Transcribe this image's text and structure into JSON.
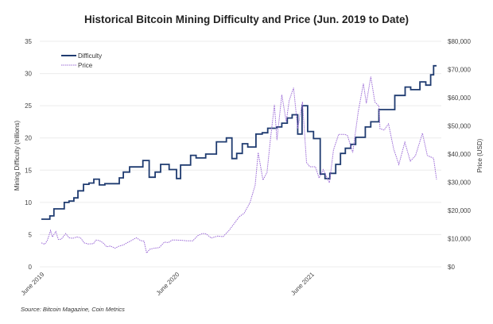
{
  "chart_data": {
    "type": "line",
    "title": "Historical Bitcoin Mining Difficulty and Price (Jun. 2019 to Date)",
    "source": "Source: Bitcoin Magazine, Coin Metrics",
    "x_range": [
      "2019-06-01",
      "2022-05-06"
    ],
    "x_tick_labels": [
      [
        "2019-06-01",
        "June 2019"
      ],
      [
        "2020-06-01",
        "June 2020"
      ],
      [
        "2021-06-01",
        "June 2021"
      ]
    ],
    "y_left": {
      "label": "Mining Difficulty (trillions)",
      "range": [
        0,
        35
      ],
      "ticks": [
        "0",
        "5",
        "10",
        "15",
        "20",
        "25",
        "30",
        "35"
      ]
    },
    "y_right": {
      "label": "Price (USD)",
      "range": [
        0,
        80000
      ],
      "ticks": [
        "$0",
        "$10,000",
        "$20,000",
        "$30,000",
        "$40,000",
        "$50,000",
        "$60,000",
        "$70,000",
        "$80,000"
      ]
    },
    "grid": true,
    "legend": {
      "placement": "top-left",
      "entries": [
        "Difficulty",
        "Price"
      ]
    },
    "colors": {
      "difficulty": "#1f3b70",
      "price": "#9b6ad6",
      "grid": "#ececec"
    },
    "series": [
      {
        "name": "Difficulty",
        "axis": "left",
        "style": "step-solid",
        "points": [
          [
            "2019-06-01",
            7.4
          ],
          [
            "2019-06-24",
            7.9
          ],
          [
            "2019-07-05",
            9.0
          ],
          [
            "2019-08-02",
            10.0
          ],
          [
            "2019-08-15",
            10.2
          ],
          [
            "2019-08-28",
            10.7
          ],
          [
            "2019-09-08",
            11.8
          ],
          [
            "2019-09-23",
            12.8
          ],
          [
            "2019-10-08",
            13.0
          ],
          [
            "2019-10-21",
            13.6
          ],
          [
            "2019-11-05",
            12.7
          ],
          [
            "2019-11-20",
            12.9
          ],
          [
            "2019-12-29",
            13.8
          ],
          [
            "2020-01-09",
            14.7
          ],
          [
            "2020-01-26",
            15.5
          ],
          [
            "2020-03-02",
            16.5
          ],
          [
            "2020-03-19",
            13.9
          ],
          [
            "2020-04-04",
            14.7
          ],
          [
            "2020-04-19",
            15.9
          ],
          [
            "2020-05-12",
            15.1
          ],
          [
            "2020-06-01",
            13.7
          ],
          [
            "2020-06-12",
            15.8
          ],
          [
            "2020-07-09",
            17.3
          ],
          [
            "2020-07-24",
            16.9
          ],
          [
            "2020-08-19",
            17.5
          ],
          [
            "2020-09-17",
            19.4
          ],
          [
            "2020-10-14",
            20.0
          ],
          [
            "2020-10-29",
            16.8
          ],
          [
            "2020-11-11",
            17.6
          ],
          [
            "2020-11-26",
            19.1
          ],
          [
            "2020-12-11",
            18.6
          ],
          [
            "2021-01-02",
            20.6
          ],
          [
            "2021-01-19",
            20.8
          ],
          [
            "2021-02-03",
            21.5
          ],
          [
            "2021-02-27",
            21.7
          ],
          [
            "2021-03-13",
            22.3
          ],
          [
            "2021-03-28",
            23.1
          ],
          [
            "2021-04-10",
            23.6
          ],
          [
            "2021-04-25",
            20.6
          ],
          [
            "2021-05-07",
            25.0
          ],
          [
            "2021-05-22",
            21.0
          ],
          [
            "2021-06-07",
            19.9
          ],
          [
            "2021-06-25",
            14.4
          ],
          [
            "2021-07-08",
            13.7
          ],
          [
            "2021-07-21",
            14.5
          ],
          [
            "2021-08-06",
            15.9
          ],
          [
            "2021-08-19",
            17.6
          ],
          [
            "2021-09-01",
            18.4
          ],
          [
            "2021-09-16",
            19.0
          ],
          [
            "2021-09-29",
            20.1
          ],
          [
            "2021-10-25",
            21.7
          ],
          [
            "2021-11-09",
            22.5
          ],
          [
            "2021-12-01",
            24.4
          ],
          [
            "2022-01-13",
            26.6
          ],
          [
            "2022-02-10",
            27.9
          ],
          [
            "2022-02-25",
            27.5
          ],
          [
            "2022-03-22",
            28.7
          ],
          [
            "2022-04-07",
            28.2
          ],
          [
            "2022-04-20",
            29.8
          ],
          [
            "2022-04-28",
            31.2
          ],
          [
            "2022-05-06",
            31.2
          ]
        ]
      },
      {
        "name": "Price",
        "axis": "right",
        "style": "dotted",
        "points": [
          [
            "2019-06-01",
            8500
          ],
          [
            "2019-06-10",
            8000
          ],
          [
            "2019-06-17",
            9300
          ],
          [
            "2019-06-26",
            12900
          ],
          [
            "2019-07-01",
            10600
          ],
          [
            "2019-07-10",
            12500
          ],
          [
            "2019-07-17",
            9700
          ],
          [
            "2019-07-25",
            9800
          ],
          [
            "2019-08-06",
            11800
          ],
          [
            "2019-08-15",
            10300
          ],
          [
            "2019-08-25",
            10100
          ],
          [
            "2019-09-05",
            10600
          ],
          [
            "2019-09-15",
            10300
          ],
          [
            "2019-09-25",
            8500
          ],
          [
            "2019-10-05",
            8100
          ],
          [
            "2019-10-20",
            8200
          ],
          [
            "2019-10-27",
            9500
          ],
          [
            "2019-11-05",
            9300
          ],
          [
            "2019-11-15",
            8500
          ],
          [
            "2019-11-25",
            7100
          ],
          [
            "2019-12-05",
            7400
          ],
          [
            "2019-12-17",
            6600
          ],
          [
            "2019-12-28",
            7300
          ],
          [
            "2020-01-10",
            7800
          ],
          [
            "2020-01-20",
            8600
          ],
          [
            "2020-02-01",
            9400
          ],
          [
            "2020-02-13",
            10300
          ],
          [
            "2020-02-25",
            9300
          ],
          [
            "2020-03-05",
            9100
          ],
          [
            "2020-03-12",
            4900
          ],
          [
            "2020-03-20",
            6200
          ],
          [
            "2020-04-01",
            6600
          ],
          [
            "2020-04-15",
            6800
          ],
          [
            "2020-04-29",
            8800
          ],
          [
            "2020-05-10",
            8600
          ],
          [
            "2020-05-20",
            9500
          ],
          [
            "2020-06-01",
            9500
          ],
          [
            "2020-06-15",
            9400
          ],
          [
            "2020-07-01",
            9200
          ],
          [
            "2020-07-15",
            9200
          ],
          [
            "2020-07-28",
            11000
          ],
          [
            "2020-08-10",
            11800
          ],
          [
            "2020-08-20",
            11700
          ],
          [
            "2020-09-03",
            10200
          ],
          [
            "2020-09-20",
            10900
          ],
          [
            "2020-10-05",
            10700
          ],
          [
            "2020-10-21",
            12900
          ],
          [
            "2020-11-05",
            15500
          ],
          [
            "2020-11-18",
            17800
          ],
          [
            "2020-12-01",
            19000
          ],
          [
            "2020-12-17",
            22800
          ],
          [
            "2020-12-31",
            29000
          ],
          [
            "2021-01-08",
            40500
          ],
          [
            "2021-01-21",
            30800
          ],
          [
            "2021-02-01",
            33500
          ],
          [
            "2021-02-10",
            45000
          ],
          [
            "2021-02-21",
            57500
          ],
          [
            "2021-02-28",
            45000
          ],
          [
            "2021-03-13",
            61000
          ],
          [
            "2021-03-25",
            51500
          ],
          [
            "2021-04-02",
            59000
          ],
          [
            "2021-04-14",
            63500
          ],
          [
            "2021-04-25",
            49000
          ],
          [
            "2021-05-08",
            58500
          ],
          [
            "2021-05-19",
            37000
          ],
          [
            "2021-05-28",
            35500
          ],
          [
            "2021-06-12",
            35500
          ],
          [
            "2021-06-22",
            31500
          ],
          [
            "2021-07-03",
            34500
          ],
          [
            "2021-07-20",
            29800
          ],
          [
            "2021-07-31",
            41500
          ],
          [
            "2021-08-14",
            47000
          ],
          [
            "2021-08-31",
            47000
          ],
          [
            "2021-09-07",
            46500
          ],
          [
            "2021-09-21",
            40500
          ],
          [
            "2021-10-06",
            55000
          ],
          [
            "2021-10-20",
            65000
          ],
          [
            "2021-10-28",
            58000
          ],
          [
            "2021-11-09",
            67500
          ],
          [
            "2021-11-20",
            58500
          ],
          [
            "2021-12-01",
            57000
          ],
          [
            "2021-12-04",
            49000
          ],
          [
            "2021-12-15",
            48500
          ],
          [
            "2021-12-27",
            50700
          ],
          [
            "2022-01-10",
            41800
          ],
          [
            "2022-01-24",
            36300
          ],
          [
            "2022-02-09",
            44200
          ],
          [
            "2022-02-24",
            37500
          ],
          [
            "2022-03-10",
            39400
          ],
          [
            "2022-03-29",
            47400
          ],
          [
            "2022-04-11",
            39500
          ],
          [
            "2022-04-28",
            38500
          ],
          [
            "2022-05-06",
            31000
          ]
        ]
      }
    ]
  }
}
